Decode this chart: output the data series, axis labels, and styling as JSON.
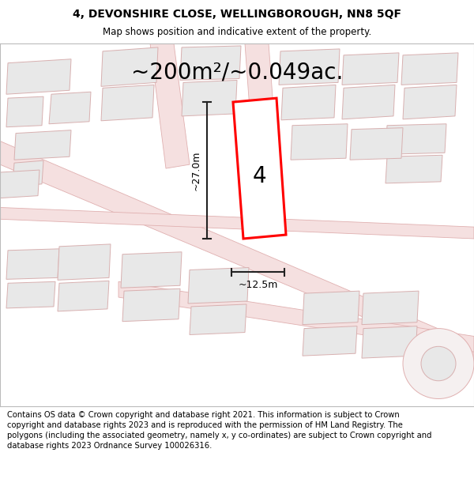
{
  "title_line1": "4, DEVONSHIRE CLOSE, WELLINGBOROUGH, NN8 5QF",
  "title_line2": "Map shows position and indicative extent of the property.",
  "area_label": "~200m²/~0.049ac.",
  "width_label": "~12.5m",
  "height_label": "~27.0m",
  "plot_number": "4",
  "footer_text": "Contains OS data © Crown copyright and database right 2021. This information is subject to Crown copyright and database rights 2023 and is reproduced with the permission of HM Land Registry. The polygons (including the associated geometry, namely x, y co-ordinates) are subject to Crown copyright and database rights 2023 Ordnance Survey 100026316.",
  "bg_color": "#ffffff",
  "map_bg": "#f5f0f0",
  "plot_fill": "#ffffff",
  "plot_edge": "#ff0000",
  "building_fill": "#e8e8e8",
  "building_edge": "#d8b0b0",
  "road_fill": "#f5e0e0",
  "road_edge": "#e0b0b0",
  "dim_color": "#222222",
  "title_fontsize": 10,
  "subtitle_fontsize": 8.5,
  "area_fontsize": 20,
  "dim_fontsize": 9,
  "plot_label_fontsize": 20,
  "footer_fontsize": 7.2
}
